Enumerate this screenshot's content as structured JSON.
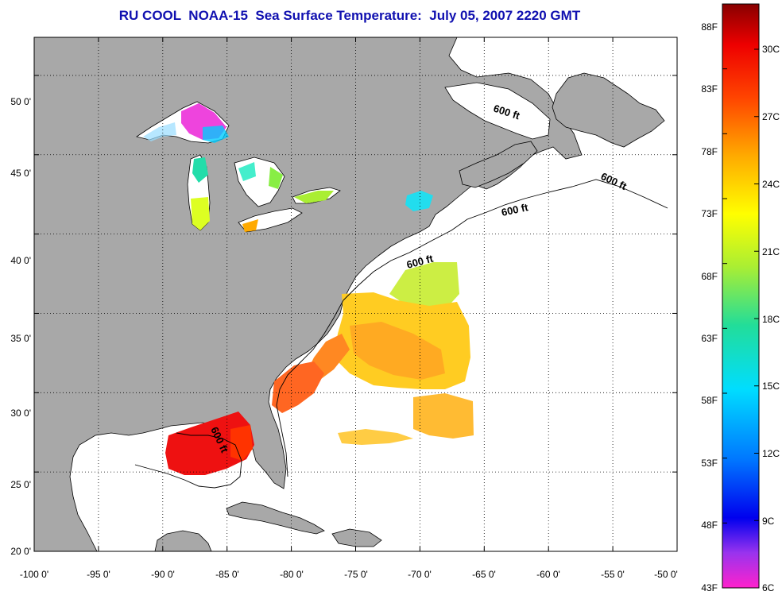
{
  "title": "RU COOL  NOAA-15  Sea Surface Temperature:  July 05, 2007 2220 GMT",
  "map": {
    "lon_labels": [
      "-100 0'",
      "-95 0'",
      "-90 0'",
      "-85 0'",
      "-80 0'",
      "-75 0'",
      "-70 0'",
      "-65 0'",
      "-60 0'",
      "-55 0'",
      "-50 0'"
    ],
    "lat_labels": [
      "50 0'",
      "45 0'",
      "40 0'",
      "35 0'",
      "30 0'",
      "25 0'",
      "20 0'"
    ],
    "lon_range": [
      -100,
      -50
    ],
    "lat_range": [
      20,
      52.4
    ],
    "contour_label": "600 ft",
    "land_color": "#a8a8a8",
    "ocean_color": "#ffffff",
    "gridlines": "dotted"
  },
  "colorbar": {
    "fahrenheit_labels": [
      "88F",
      "83F",
      "78F",
      "73F",
      "68F",
      "63F",
      "58F",
      "53F",
      "48F",
      "43F"
    ],
    "celsius_labels": [
      "30C",
      "27C",
      "24C",
      "21C",
      "18C",
      "15C",
      "12C",
      "9C",
      "6C"
    ],
    "color_stops": [
      "#ff22cc",
      "#9933ee",
      "#0000ee",
      "#0077ff",
      "#00ddff",
      "#22dd99",
      "#aaee33",
      "#ffff00",
      "#ffaa00",
      "#ff4400",
      "#ee0000",
      "#880000"
    ]
  }
}
